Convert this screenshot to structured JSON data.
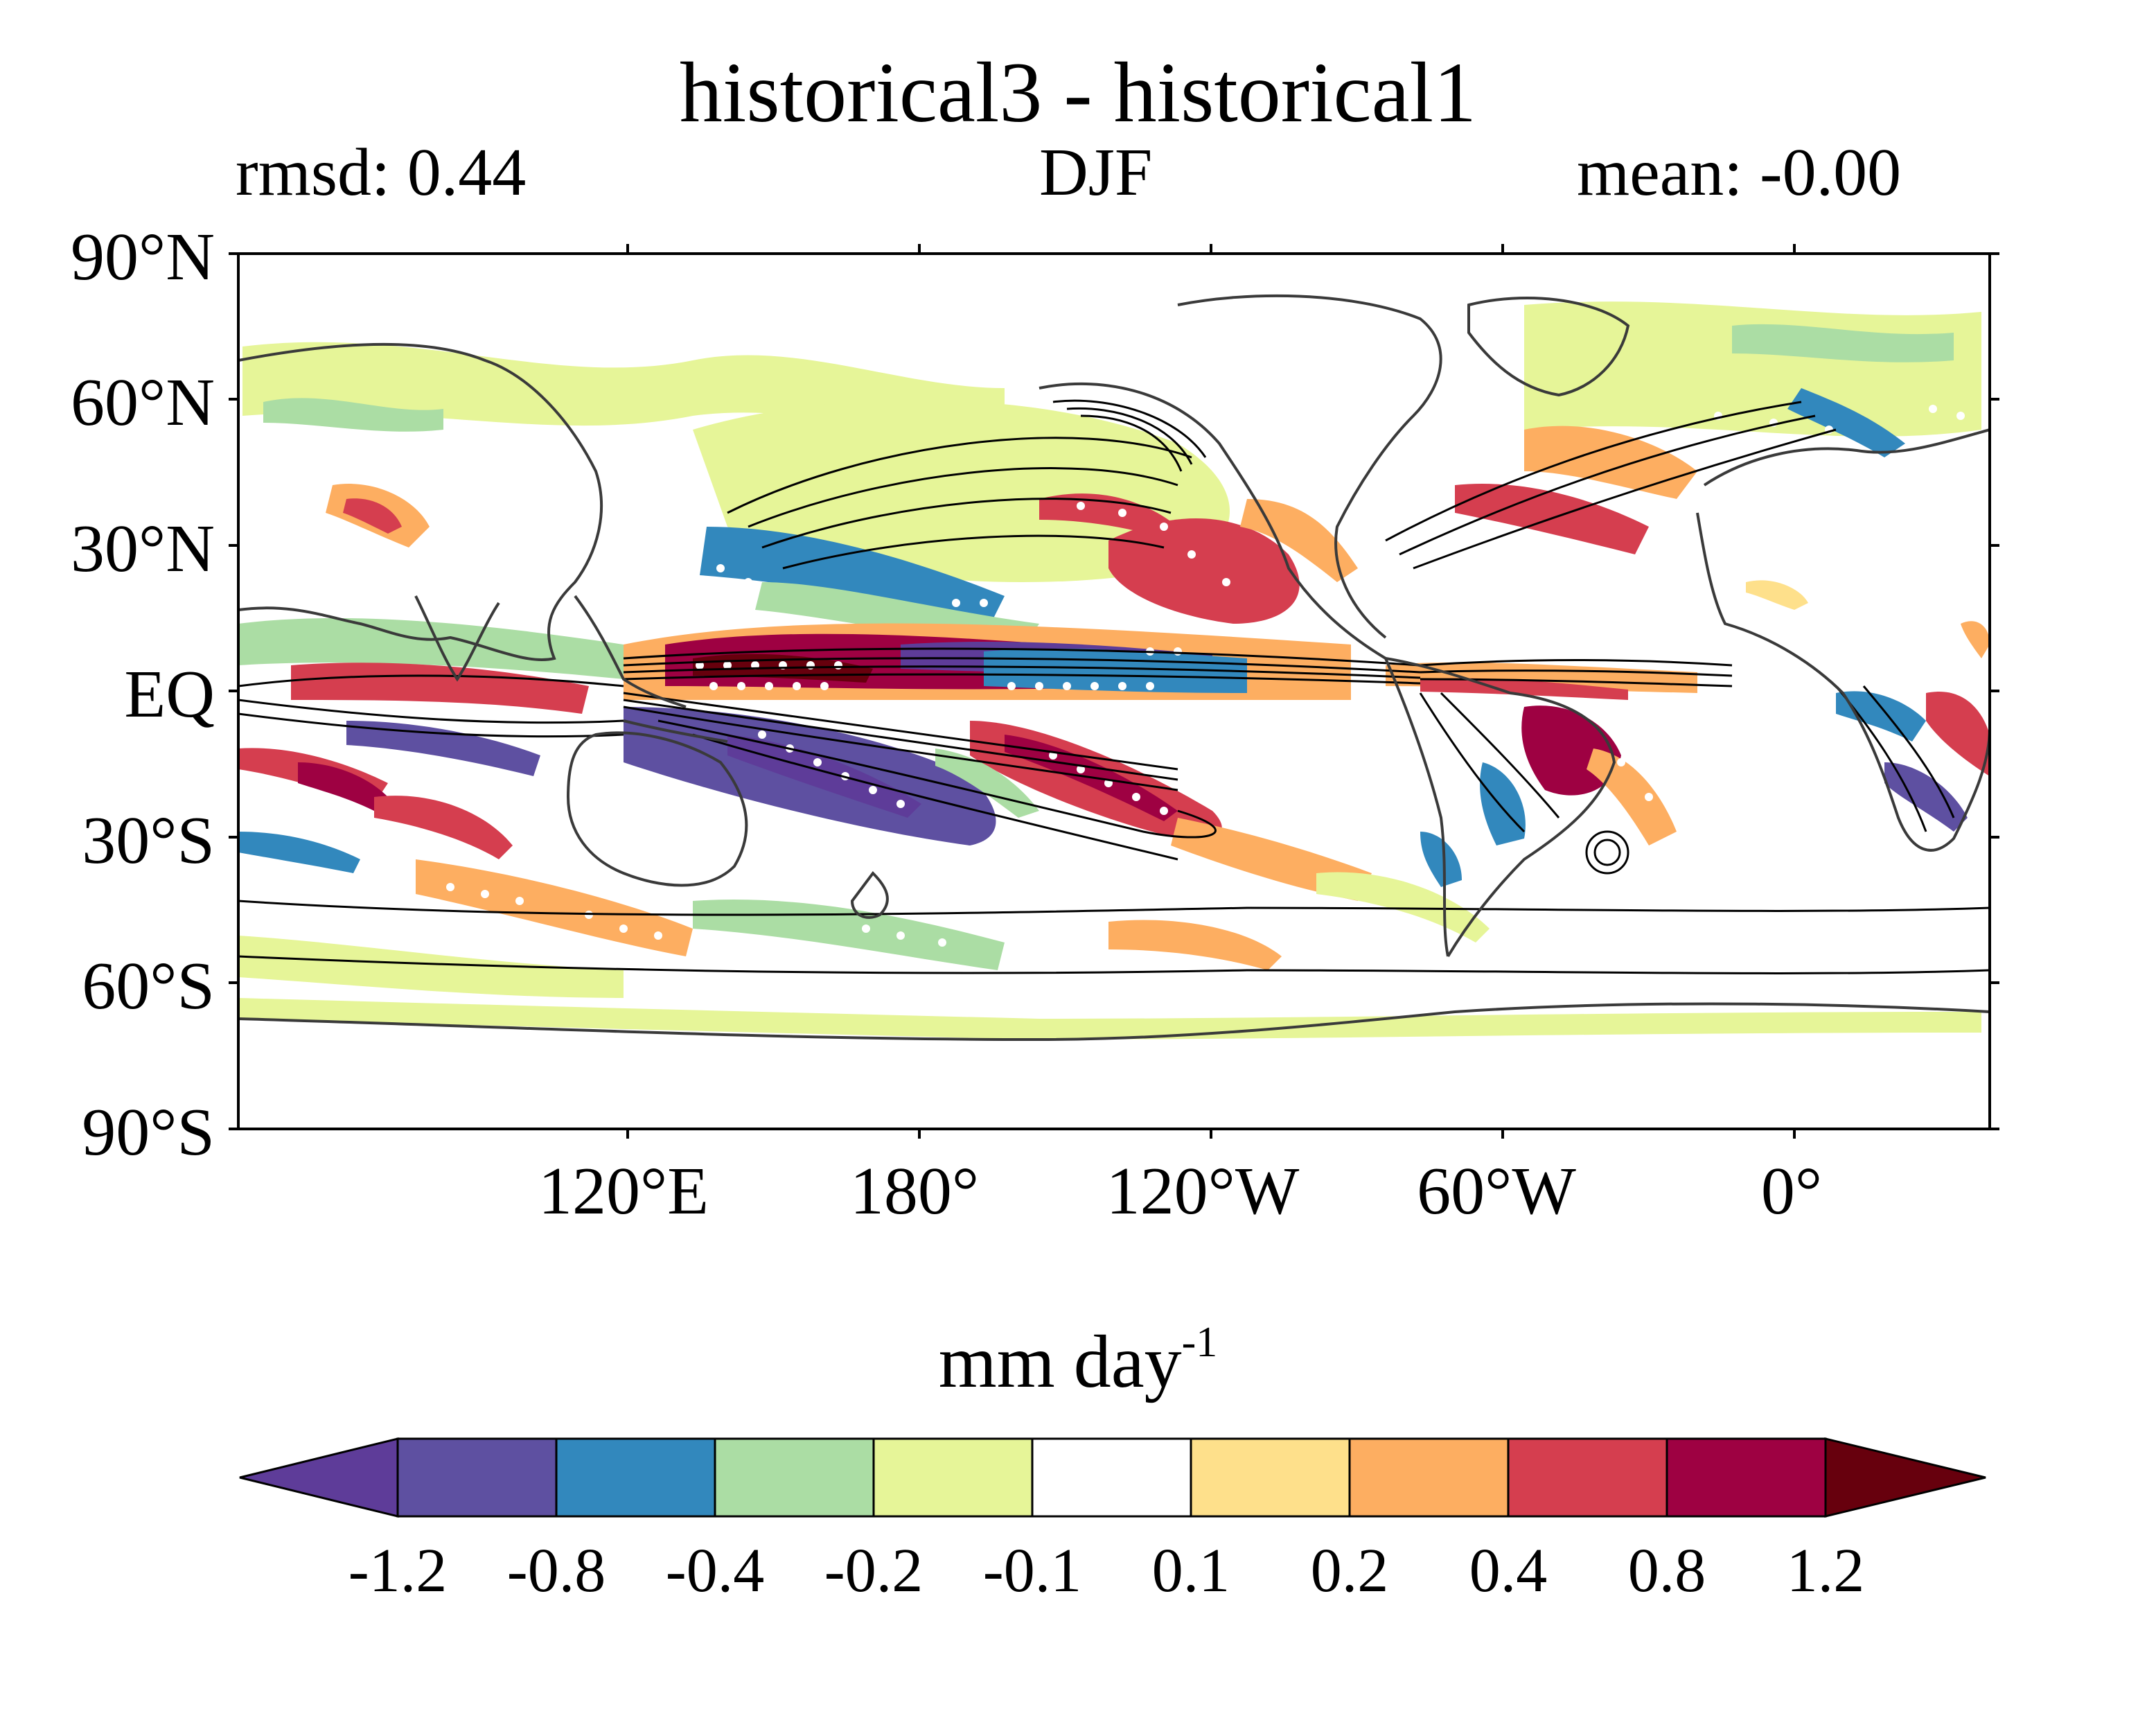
{
  "title": "historical3 - historical1",
  "stats": {
    "rmsd": "rmsd: 0.44",
    "season": "DJF",
    "mean": "mean: -0.00"
  },
  "y_ticks": [
    "90°N",
    "60°N",
    "30°N",
    "EQ",
    "30°S",
    "60°S",
    "90°S"
  ],
  "x_ticks": [
    "120°E",
    "180°",
    "120°W",
    "60°W",
    "0°"
  ],
  "colorbar": {
    "unit": "mm day",
    "unit_exp": "-1",
    "levels": [
      "-1.2",
      "-0.8",
      "-0.4",
      "-0.2",
      "-0.1",
      "0.1",
      "0.2",
      "0.4",
      "0.8",
      "1.2"
    ],
    "colors": [
      "#5e3c99",
      "#5e50a1",
      "#3288bd",
      "#abdda4",
      "#e6f598",
      "#ffffff",
      "#fee08b",
      "#fdae61",
      "#d53e4f",
      "#9e0142",
      "#67000d"
    ],
    "extend": "both"
  },
  "map": {
    "projection": "PlateCarree",
    "central_longitude": -150,
    "variable": "precipitation difference",
    "features": [
      "coastlines",
      "contours",
      "significance-stippling"
    ]
  }
}
